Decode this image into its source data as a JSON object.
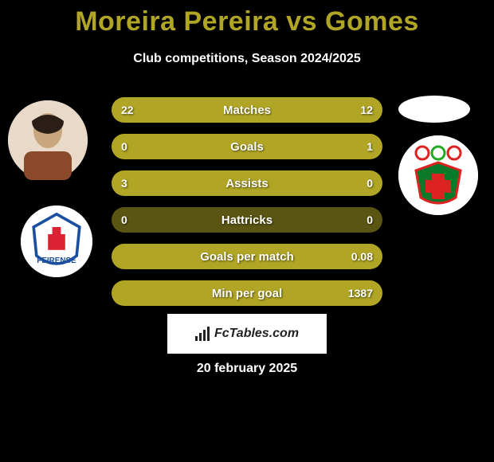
{
  "title": "Moreira Pereira vs Gomes",
  "subtitle": "Club competitions, Season 2024/2025",
  "colors": {
    "background": "#000000",
    "title": "#b0a524",
    "text": "#ffffff",
    "bar_bg": "#5a5512",
    "bar_fill": "#b0a524",
    "footer_bg": "#ffffff",
    "footer_text": "#222222"
  },
  "bars": [
    {
      "label": "Matches",
      "left": "22",
      "right": "12",
      "left_pct": 64.7,
      "right_pct": 35.3
    },
    {
      "label": "Goals",
      "left": "0",
      "right": "1",
      "left_pct": 0,
      "right_pct": 100
    },
    {
      "label": "Assists",
      "left": "3",
      "right": "0",
      "left_pct": 100,
      "right_pct": 0
    },
    {
      "label": "Hattricks",
      "left": "0",
      "right": "0",
      "left_pct": 0,
      "right_pct": 0
    },
    {
      "label": "Goals per match",
      "left": "",
      "right": "0.08",
      "left_pct": 0,
      "right_pct": 100
    },
    {
      "label": "Min per goal",
      "left": "",
      "right": "1387",
      "left_pct": 0,
      "right_pct": 100
    }
  ],
  "footer_brand": "FcTables.com",
  "footer_date": "20 february 2025",
  "icons": {
    "left_player": "player-photo",
    "left_club": "feirense-crest",
    "right_flag": "oval-flag",
    "right_club": "pacos-crest"
  }
}
